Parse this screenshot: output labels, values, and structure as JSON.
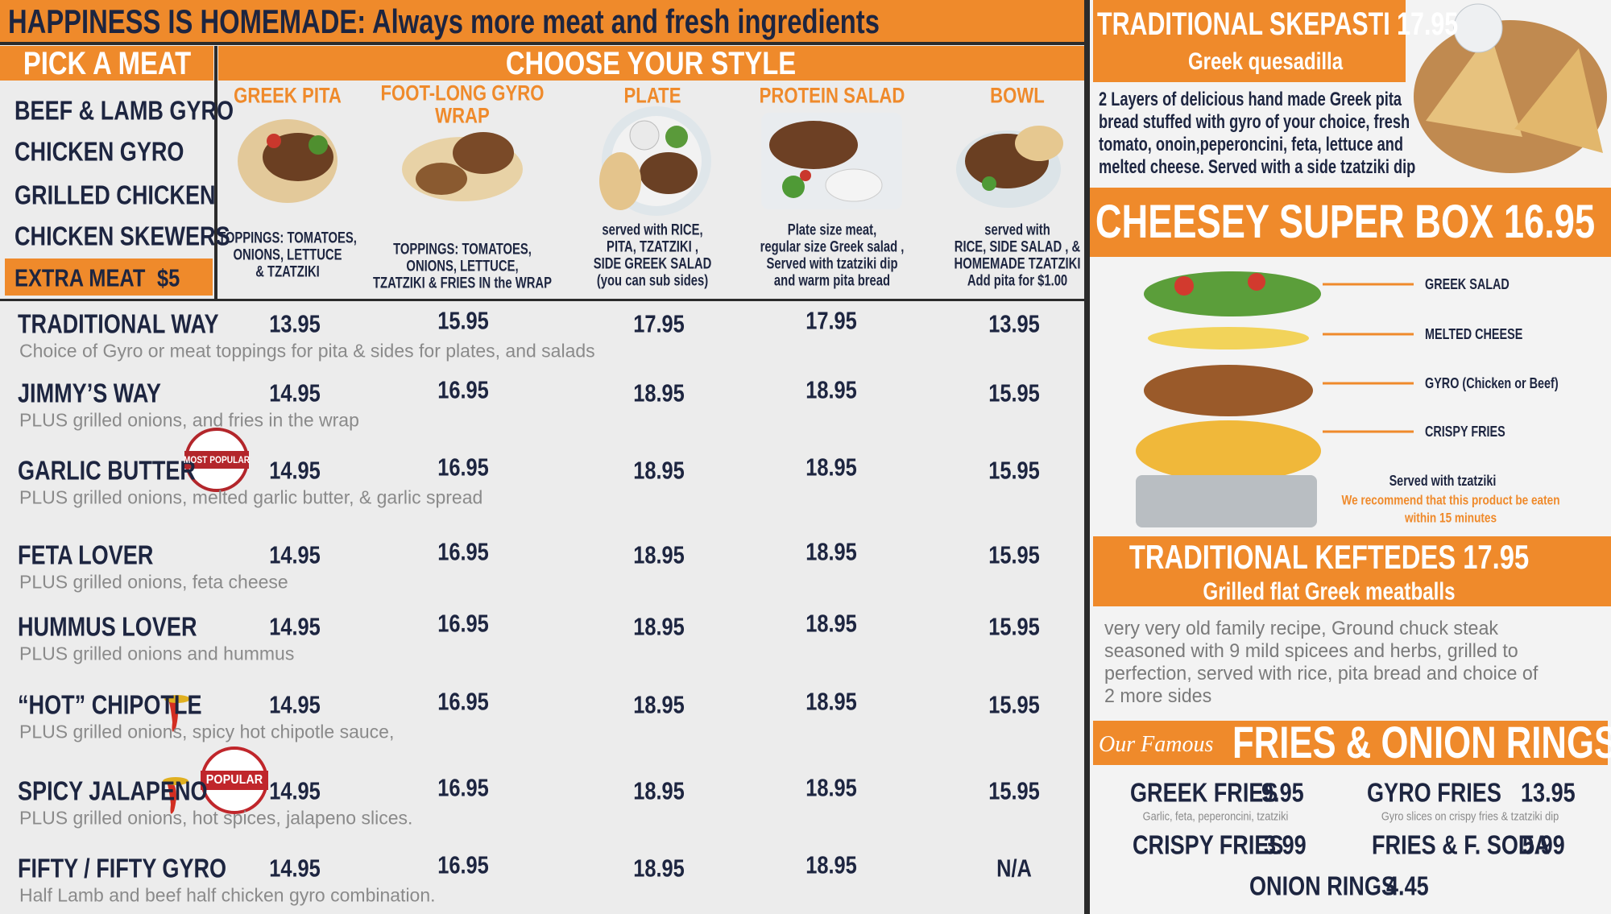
{
  "header": {
    "title": "HAPPINESS IS HOMEMADE: Always more meat and fresh ingredients"
  },
  "pick_meat": {
    "title": "PICK A MEAT",
    "meats": [
      "BEEF & LAMB GYRO",
      "CHICKEN GYRO",
      "GRILLED CHICKEN",
      "CHICKEN SKEWERS"
    ],
    "extra": {
      "label": "EXTRA MEAT",
      "price": "$5"
    }
  },
  "styles": {
    "title": "CHOOSE YOUR STYLE",
    "columns": [
      {
        "name": [
          "GREEK PITA"
        ],
        "description": [
          "TOPPINGS: TOMATOES,",
          "ONIONS, LETTUCE",
          "& TZATZIKI"
        ]
      },
      {
        "name": [
          "FOOT-LONG GYRO",
          "WRAP"
        ],
        "description": [
          "TOPPINGS: TOMATOES,",
          "ONIONS, LETTUCE,",
          "TZATZIKI & FRIES IN the WRAP"
        ]
      },
      {
        "name": [
          "PLATE"
        ],
        "description": [
          "served with RICE,",
          "PITA,  TZATZIKI ,",
          "SIDE GREEK SALAD",
          "(you can sub sides)"
        ]
      },
      {
        "name": [
          "PROTEIN SALAD"
        ],
        "description": [
          "Plate size meat,",
          "regular size Greek salad ,",
          "Served with tzatziki dip",
          "and warm pita bread"
        ]
      },
      {
        "name": [
          "BOWL"
        ],
        "description": [
          "served with",
          "RICE,  SIDE SALAD , &",
          "HOMEMADE TZATZIKI",
          "Add pita for $1.00"
        ]
      }
    ]
  },
  "rows": [
    {
      "name": "TRADITIONAL WAY",
      "description": "Choice of Gyro or meat toppings for pita & sides for plates, and salads",
      "prices": [
        "13.95",
        "15.95",
        "17.95",
        "17.95",
        "13.95"
      ]
    },
    {
      "name": "JIMMY’S WAY",
      "description": "PLUS grilled onions, and fries in the wrap",
      "prices": [
        "14.95",
        "16.95",
        "18.95",
        "18.95",
        "15.95"
      ]
    },
    {
      "name": "GARLIC BUTTER",
      "badge": "MOST POPULAR",
      "description": "PLUS grilled onions, melted garlic butter, & garlic spread",
      "prices": [
        "14.95",
        "16.95",
        "18.95",
        "18.95",
        "15.95"
      ]
    },
    {
      "name": "FETA LOVER",
      "description": "PLUS grilled onions, feta cheese",
      "prices": [
        "14.95",
        "16.95",
        "18.95",
        "18.95",
        "15.95"
      ]
    },
    {
      "name": "HUMMUS LOVER",
      "description": "PLUS grilled onions and hummus",
      "prices": [
        "14.95",
        "16.95",
        "18.95",
        "18.95",
        "15.95"
      ]
    },
    {
      "name": "“HOT” CHIPOTLE",
      "description": "PLUS grilled onions, spicy hot chipotle sauce,",
      "prices": [
        "14.95",
        "16.95",
        "18.95",
        "18.95",
        "15.95"
      ]
    },
    {
      "name": "SPICY JALAPENO",
      "badge": "POPULAR",
      "description": "PLUS grilled onions, hot spices, jalapeno slices.",
      "prices": [
        "14.95",
        "16.95",
        "18.95",
        "18.95",
        "15.95"
      ]
    },
    {
      "name": "FIFTY / FIFTY GYRO",
      "description": "Half Lamb and beef half chicken gyro combination.",
      "prices": [
        "14.95",
        "16.95",
        "18.95",
        "18.95",
        "N/A"
      ]
    }
  ],
  "skepasti": {
    "title": "TRADITIONAL SKEPASTI 17.95",
    "subtitle": "Greek quesadilla",
    "description": [
      "2 Layers of delicious hand made Greek pita",
      "bread stuffed with gyro of your choice, fresh",
      "tomato, onoin,peperoncini, feta, lettuce and",
      "melted cheese.  Served with a side tzatziki dip"
    ]
  },
  "super_box": {
    "title": "CHEESEY SUPER BOX 16.95",
    "layers": [
      "GREEK SALAD",
      "MELTED CHEESE",
      "GYRO (Chicken or Beef)",
      "CRISPY FRIES"
    ],
    "served": "Served with tzatziki",
    "note": [
      "We recommend that this product be eaten",
      "within 15 minutes"
    ]
  },
  "keftedes": {
    "title": "TRADITIONAL KEFTEDES 17.95",
    "subtitle": "Grilled flat Greek meatballs",
    "description": [
      "very very old family recipe, Ground chuck steak",
      "seasoned with 9 mild spicees and herbs, grilled to",
      "perfection, served with rice, pita bread and choice of",
      "2 more sides"
    ]
  },
  "fries": {
    "title_script": "Our Famous",
    "title": "FRIES & ONION RINGS",
    "items": [
      {
        "name": "GREEK FRIES",
        "price": "9.95",
        "description": "Garlic, feta, peperoncini, tzatziki"
      },
      {
        "name": "GYRO FRIES",
        "price": "13.95",
        "description": "Gyro slices on crispy fries  &  tzatziki dip"
      },
      {
        "name": "CRISPY FRIES",
        "price": "3.99"
      },
      {
        "name": "FRIES & F. SODA",
        "price": "5.99"
      },
      {
        "name": "ONION RINGS",
        "price": "4.45"
      }
    ]
  }
}
